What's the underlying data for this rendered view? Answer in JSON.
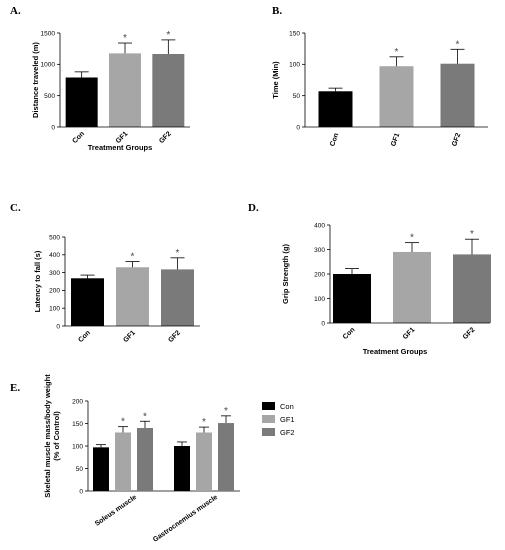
{
  "colors": {
    "Con": "#000000",
    "GF1": "#a6a6a6",
    "GF2": "#7a7a7a"
  },
  "chart_data": [
    {
      "panel": "A.",
      "type": "bar",
      "categories": [
        "Con",
        "GF1",
        "GF2"
      ],
      "values": [
        790,
        1175,
        1165
      ],
      "errors": [
        90,
        165,
        225
      ],
      "significant": [
        "",
        "*",
        "*"
      ],
      "ylabel": "Distance traveled (m)",
      "xlabel": "Treatment Groups",
      "ylim": [
        0,
        1500
      ],
      "yticks": [
        0,
        500,
        1000,
        1500
      ]
    },
    {
      "panel": "B.",
      "type": "bar",
      "categories": [
        "Con",
        "GF1",
        "GF2"
      ],
      "values": [
        57,
        97,
        101
      ],
      "errors": [
        5,
        15,
        23
      ],
      "significant": [
        "",
        "*",
        "*"
      ],
      "ylabel": "Time (Min)",
      "xlabel": "",
      "ylim": [
        0,
        150
      ],
      "yticks": [
        0,
        50,
        100,
        150
      ]
    },
    {
      "panel": "C.",
      "type": "bar",
      "categories": [
        "Con",
        "GF1",
        "GF2"
      ],
      "values": [
        268,
        330,
        318
      ],
      "errors": [
        18,
        32,
        65
      ],
      "significant": [
        "",
        "*",
        "*"
      ],
      "ylabel": "Latency to fall (s)",
      "xlabel": "",
      "ylim": [
        0,
        500
      ],
      "yticks": [
        0,
        100,
        200,
        300,
        400,
        500
      ]
    },
    {
      "panel": "D.",
      "type": "bar",
      "categories": [
        "Con",
        "GF1",
        "GF2"
      ],
      "values": [
        200,
        290,
        280
      ],
      "errors": [
        22,
        38,
        62
      ],
      "significant": [
        "",
        "*",
        "*"
      ],
      "ylabel": "Grip Strength (g)",
      "xlabel": "Treatment Groups",
      "ylim": [
        0,
        400
      ],
      "yticks": [
        0,
        100,
        200,
        300,
        400
      ]
    },
    {
      "panel": "E.",
      "type": "bar",
      "categories": [
        "Soleus muscle",
        "Gastrocnemius muscle"
      ],
      "series": [
        {
          "name": "Con",
          "values": [
            97,
            100
          ],
          "errors": [
            6,
            9
          ],
          "significant": [
            "",
            ""
          ]
        },
        {
          "name": "GF1",
          "values": [
            130,
            130
          ],
          "errors": [
            13,
            12
          ],
          "significant": [
            "*",
            "*"
          ]
        },
        {
          "name": "GF2",
          "values": [
            140,
            151
          ],
          "errors": [
            15,
            16
          ],
          "significant": [
            "*",
            "*"
          ]
        }
      ],
      "ylabel": "Skeletal muscle mass/body weight\n(% of Control)",
      "ylabel_lines": [
        "Skeletal muscle mass/body weight",
        "(% of Control)"
      ],
      "ylim": [
        0,
        200
      ],
      "yticks": [
        0,
        50,
        100,
        150,
        200
      ],
      "legend": "right"
    }
  ]
}
